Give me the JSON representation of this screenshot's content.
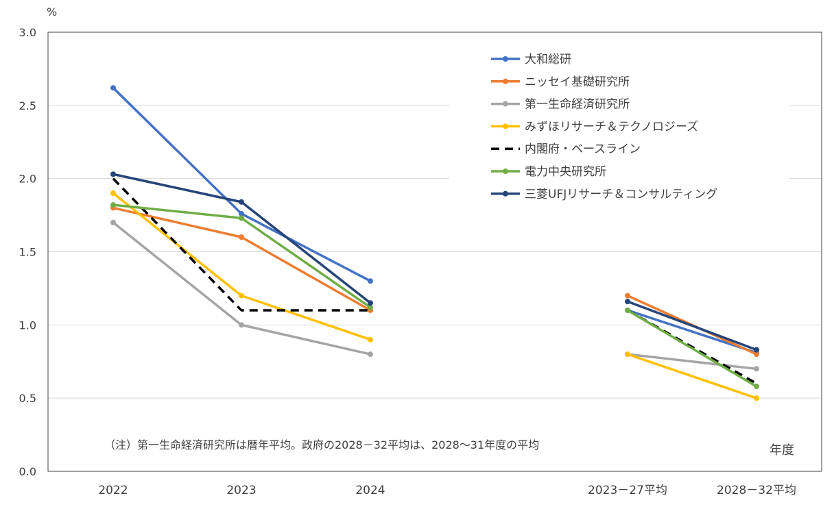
{
  "chart_data": {
    "type": "line",
    "y_unit": "%",
    "x_axis_unit": "年度",
    "categories": [
      "2022",
      "2023",
      "2024",
      "2023－27平均",
      "2028－32平均"
    ],
    "segments": [
      [
        0,
        1,
        2
      ],
      [
        3,
        4
      ]
    ],
    "ylim": [
      0.0,
      3.0
    ],
    "y_ticks": [
      "0.0",
      "0.5",
      "1.0",
      "1.5",
      "2.0",
      "2.5",
      "3.0"
    ],
    "grid": true,
    "legend_position": "top-right",
    "note": "（注）第一生命経済研究所は暦年平均。政府の2028－32平均は、2028～31年度の平均",
    "series": [
      {
        "name": "大和総研",
        "color": "#4472C4",
        "dashed": false,
        "markers": true,
        "values": [
          2.62,
          1.76,
          1.3,
          1.1,
          0.81
        ]
      },
      {
        "name": "ニッセイ基礎研究所",
        "color": "#ED7D31",
        "dashed": false,
        "markers": true,
        "values": [
          1.8,
          1.6,
          1.1,
          1.2,
          0.8
        ]
      },
      {
        "name": "第一生命経済研究所",
        "color": "#A5A5A5",
        "dashed": false,
        "markers": true,
        "values": [
          1.7,
          1.0,
          0.8,
          0.8,
          0.7
        ]
      },
      {
        "name": "みずほリサーチ＆テクノロジーズ",
        "color": "#FFC000",
        "dashed": false,
        "markers": true,
        "values": [
          1.9,
          1.2,
          0.9,
          0.8,
          0.5
        ]
      },
      {
        "name": "内閣府・ベースライン",
        "color": "#000000",
        "dashed": true,
        "markers": false,
        "values": [
          2.0,
          1.1,
          1.1,
          1.1,
          0.6
        ]
      },
      {
        "name": "電力中央研究所",
        "color": "#70AD47",
        "dashed": false,
        "markers": true,
        "values": [
          1.82,
          1.73,
          1.12,
          1.1,
          0.58
        ]
      },
      {
        "name": "三菱UFJリサーチ＆コンサルティング",
        "color": "#264478",
        "dashed": false,
        "markers": true,
        "values": [
          2.03,
          1.84,
          1.15,
          1.16,
          0.83
        ]
      }
    ]
  }
}
